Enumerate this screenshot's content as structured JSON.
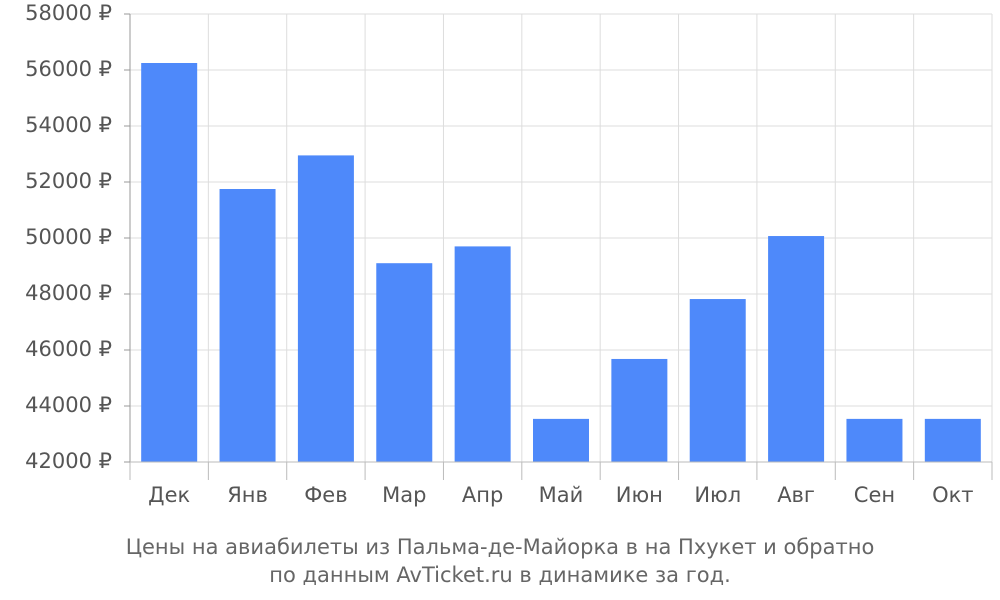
{
  "chart_data": {
    "type": "bar",
    "title_lines": [
      "Цены на авиабилеты из Пальма-де-Майорка в на Пхукет и обратно",
      "по данным AvTicket.ru в динамике за год."
    ],
    "categories": [
      "Дек",
      "Янв",
      "Фев",
      "Мар",
      "Апр",
      "Май",
      "Июн",
      "Июл",
      "Авг",
      "Сен",
      "Окт"
    ],
    "values": [
      56250,
      51750,
      52950,
      49100,
      49700,
      43540,
      45680,
      47820,
      50070,
      43540,
      43540
    ],
    "color": "#4e89fa",
    "ylim": [
      42000,
      58000
    ],
    "yticks": [
      {
        "value": 42000,
        "label": "42000 ₽"
      },
      {
        "value": 44000,
        "label": "44000 ₽"
      },
      {
        "value": 46000,
        "label": "46000 ₽"
      },
      {
        "value": 48000,
        "label": "48000 ₽"
      },
      {
        "value": 50000,
        "label": "50000 ₽"
      },
      {
        "value": 52000,
        "label": "52000 ₽"
      },
      {
        "value": 54000,
        "label": "54000 ₽"
      },
      {
        "value": 56000,
        "label": "56000 ₽"
      },
      {
        "value": 58000,
        "label": "58000 ₽"
      }
    ],
    "grid": true
  }
}
